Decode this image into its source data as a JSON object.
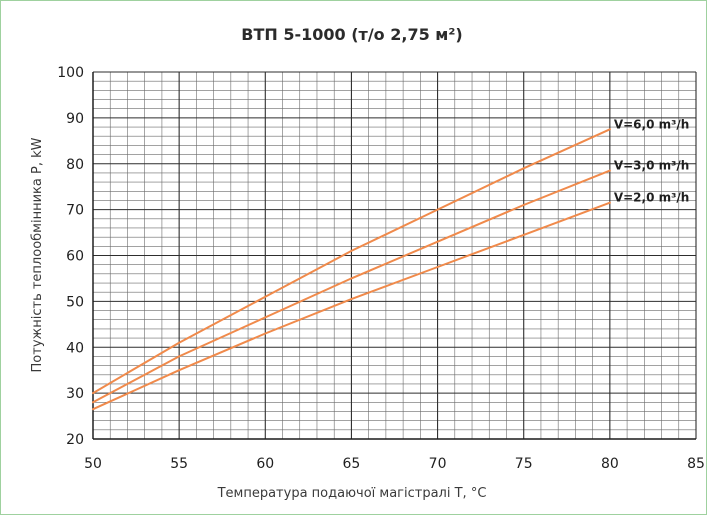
{
  "chart_data": {
    "type": "line",
    "title": "ВТП 5-1000 (т/о 2,75 м²)",
    "xlabel": "Температура подаючої магістралі T, °C",
    "ylabel": "Потужність теплообмінника P, kW",
    "xlim": [
      50,
      85
    ],
    "ylim": [
      20,
      100
    ],
    "x_ticks": [
      50,
      55,
      60,
      65,
      70,
      75,
      80,
      85
    ],
    "y_ticks": [
      20,
      30,
      40,
      50,
      60,
      70,
      80,
      90,
      100
    ],
    "x_minor_step": 1,
    "y_minor_step": 2,
    "grid": true,
    "line_color": "#f08a4b",
    "series": [
      {
        "name": "V=6,0 m³/h",
        "x": [
          50,
          55,
          60,
          65,
          70,
          75,
          80
        ],
        "values": [
          30,
          41,
          51,
          61,
          70,
          79,
          87.5
        ]
      },
      {
        "name": "V=3,0 m³/h",
        "x": [
          50,
          55,
          60,
          65,
          70,
          75,
          80
        ],
        "values": [
          28,
          38,
          46.5,
          55,
          63,
          71,
          78.5
        ]
      },
      {
        "name": "V=2,0 m³/h",
        "x": [
          50,
          55,
          60,
          65,
          70,
          75,
          80
        ],
        "values": [
          26.5,
          35,
          43,
          50.5,
          57.5,
          64.5,
          71.5
        ]
      }
    ]
  }
}
